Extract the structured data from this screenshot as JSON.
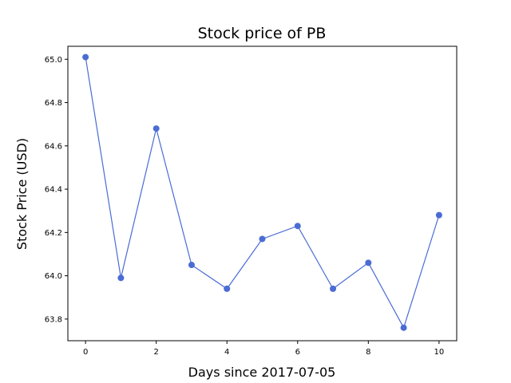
{
  "chart_data": {
    "type": "line",
    "title": "Stock price of PB",
    "xlabel": "Days since 2017-07-05",
    "ylabel": "Stock Price (USD)",
    "x": [
      0,
      1,
      2,
      3,
      4,
      5,
      6,
      7,
      8,
      9,
      10
    ],
    "series": [
      {
        "values": [
          65.01,
          63.99,
          64.68,
          64.05,
          63.94,
          64.17,
          64.23,
          63.94,
          64.06,
          63.76,
          64.28
        ],
        "color": "#4a6cd4"
      }
    ],
    "xlim": [
      -0.5,
      10.5
    ],
    "ylim": [
      63.7,
      65.06
    ],
    "xticks": [
      0,
      2,
      4,
      6,
      8,
      10
    ],
    "xtick_labels": [
      "0",
      "2",
      "4",
      "6",
      "8",
      "10"
    ],
    "yticks": [
      63.8,
      64.0,
      64.2,
      64.4,
      64.6,
      64.8,
      65.0
    ],
    "ytick_labels": [
      "63.8",
      "64.0",
      "64.2",
      "64.4",
      "64.6",
      "64.8",
      "65.0"
    ],
    "grid": false,
    "marker": "circle"
  }
}
